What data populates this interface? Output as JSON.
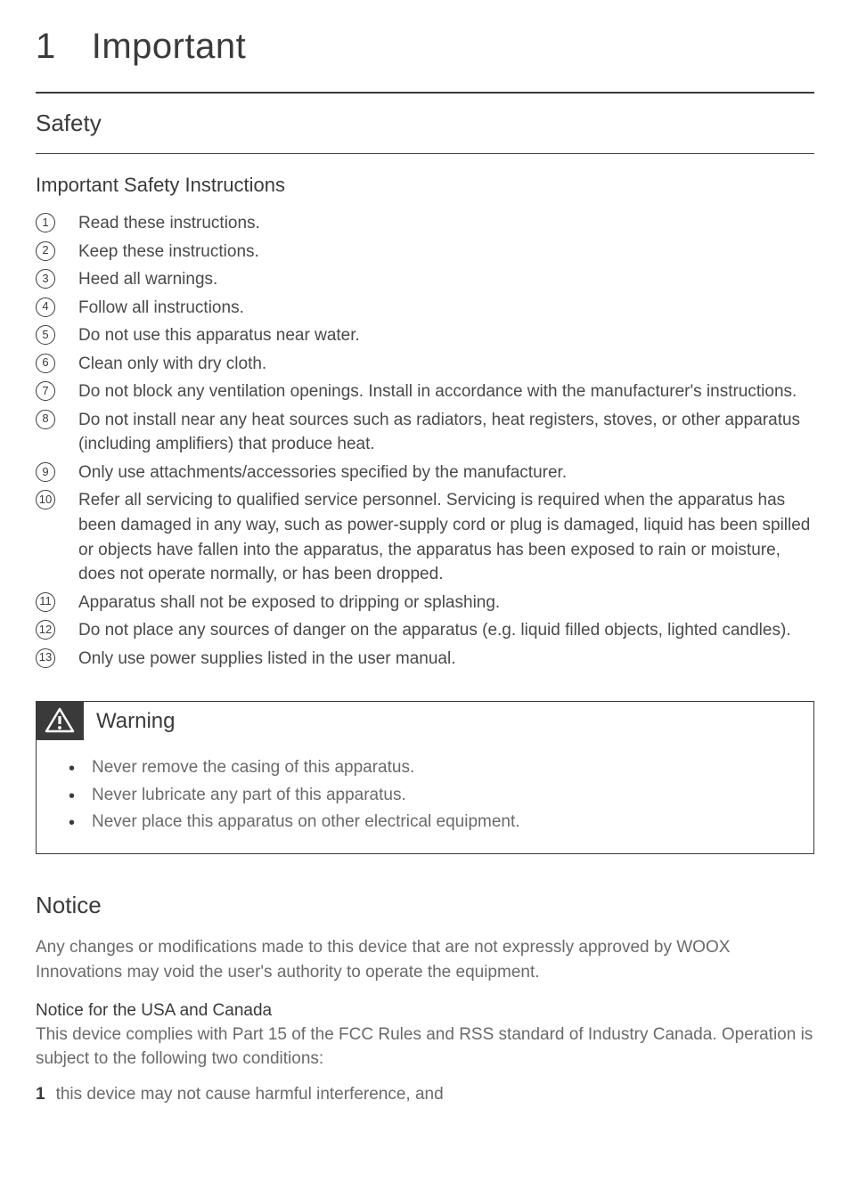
{
  "title": {
    "number": "1",
    "text": "Important"
  },
  "safety": {
    "heading": "Safety",
    "subheading": "Important Safety Instructions",
    "items": [
      "Read these instructions.",
      "Keep these instructions.",
      "Heed all warnings.",
      "Follow all instructions.",
      "Do not use this apparatus near water.",
      "Clean only with dry cloth.",
      "Do not block any ventilation openings. Install in accordance with the manufacturer's instructions.",
      "Do not install near any heat sources such as radiators, heat registers, stoves, or other apparatus (including amplifiers) that produce heat.",
      "Only use attachments/accessories specified by the manufacturer.",
      "Refer all servicing to qualified service personnel. Servicing is required when the apparatus has been damaged in any way, such as power-supply cord or plug is damaged, liquid has been spilled or objects have fallen into the apparatus, the apparatus has been exposed to rain or moisture, does not operate normally, or has been dropped.",
      "Apparatus shall not be exposed to dripping or splashing.",
      "Do not place any sources of danger on the apparatus (e.g. liquid filled objects, lighted candles).",
      "Only use power supplies listed in the user manual."
    ]
  },
  "warning": {
    "label": "Warning",
    "items": [
      "Never remove the casing of this apparatus.",
      "Never lubricate any part of this apparatus.",
      "Never place this apparatus on other electrical equipment."
    ]
  },
  "notice": {
    "heading": "Notice",
    "intro": "Any changes or modifications made to this device that are not expressly approved by WOOX Innovations may void the user's authority to operate the equipment.",
    "usa_canada_heading": "Notice for the USA and Canada",
    "usa_canada_text": "This device complies with Part 15 of the FCC Rules and RSS standard of Industry Canada. Operation is subject to the following two conditions:",
    "condition1_num": "1",
    "condition1_text": "this device may not cause harmful interference, and"
  },
  "colors": {
    "text_primary": "#3a3a3a",
    "text_body": "#6a6a6a",
    "background": "#ffffff",
    "border": "#3a3a3a"
  },
  "typography": {
    "title_fontsize": 40,
    "section_heading_fontsize": 26,
    "subsection_heading_fontsize": 22,
    "body_fontsize": 19,
    "circled_num_fontsize": 13,
    "warning_label_fontsize": 24
  }
}
